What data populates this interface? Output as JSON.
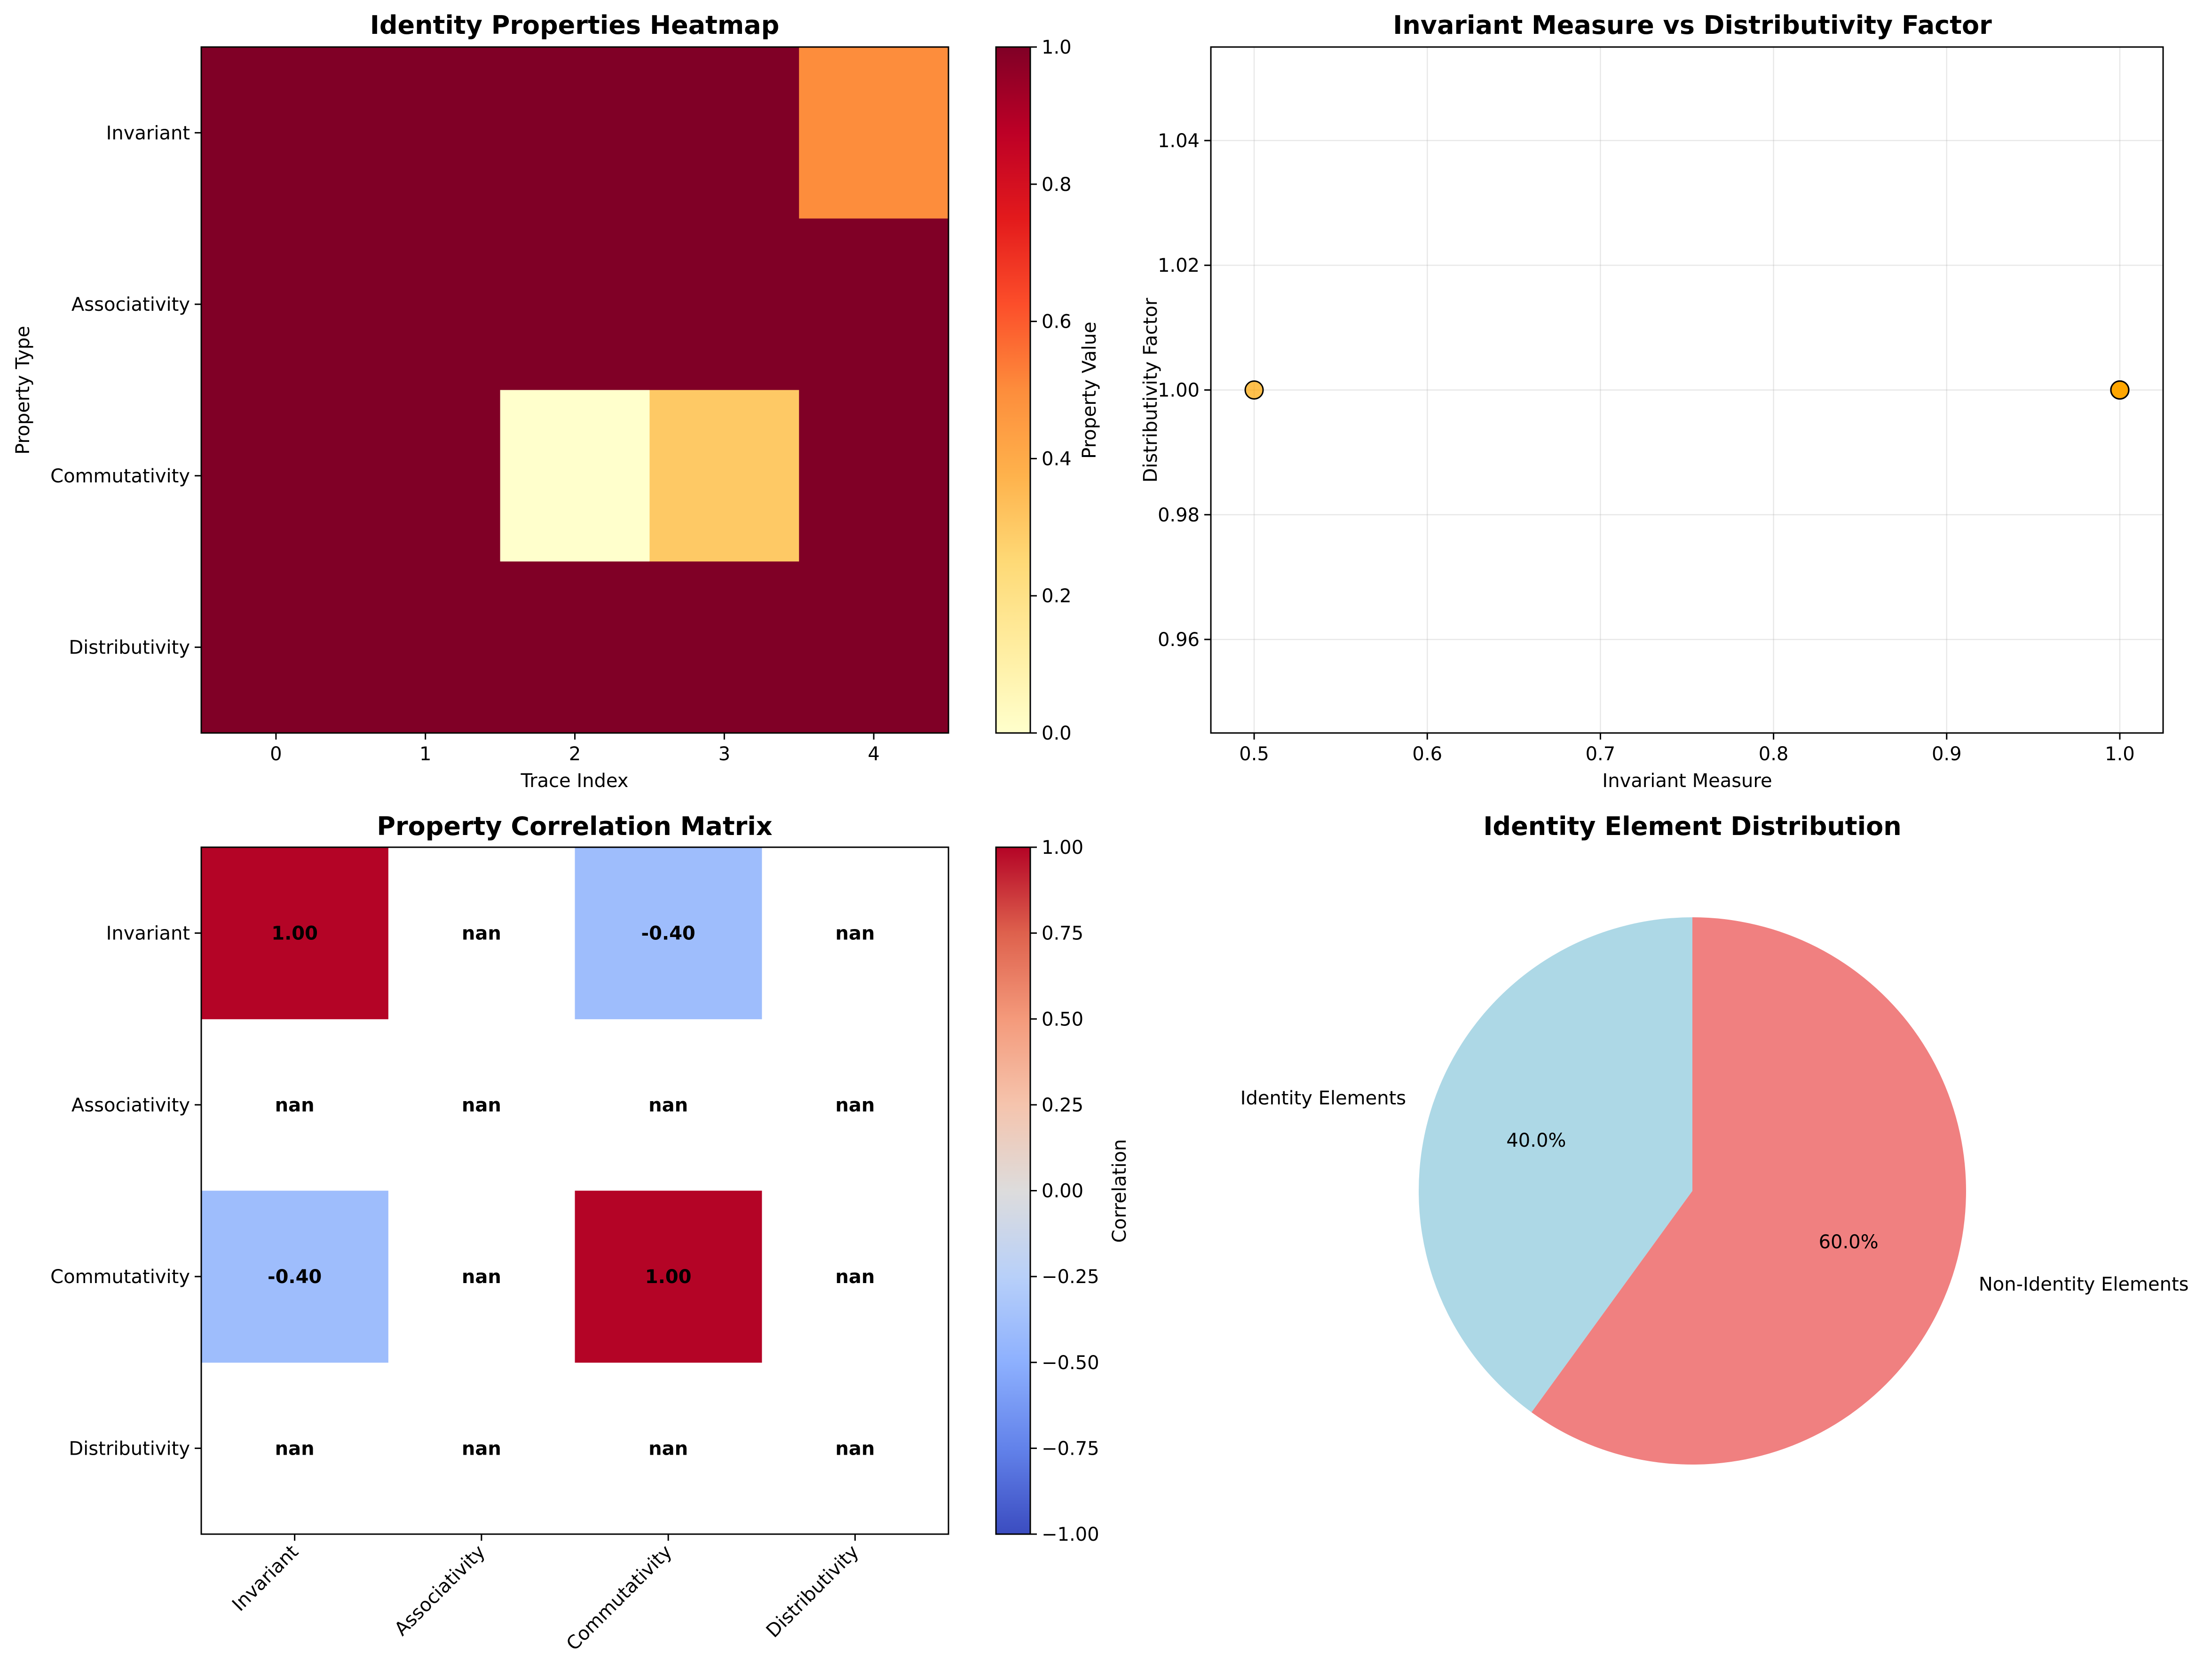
{
  "chart_data": [
    {
      "type": "heatmap",
      "title": "Identity Properties Heatmap",
      "xlabel": "Trace Index",
      "ylabel": "Property Type",
      "x_ticks": [
        "0",
        "1",
        "2",
        "3",
        "4"
      ],
      "y_ticks": [
        "Invariant",
        "Associativity",
        "Commutativity",
        "Distributivity"
      ],
      "values": [
        [
          1,
          1,
          1,
          1,
          0.5
        ],
        [
          1,
          1,
          1,
          1,
          1
        ],
        [
          1,
          1,
          0,
          0.3,
          1
        ],
        [
          1,
          1,
          1,
          1,
          1
        ]
      ],
      "colormap": "YlOrRd",
      "vmin": 0,
      "vmax": 1,
      "colorbar_label": "Property Value",
      "colorbar_ticks": [
        "0.0",
        "0.2",
        "0.4",
        "0.6",
        "0.8",
        "1.0"
      ],
      "colorbar_tick_values": [
        0,
        0.2,
        0.4,
        0.6,
        0.8,
        1.0
      ]
    },
    {
      "type": "scatter",
      "title": "Invariant Measure vs Distributivity Factor",
      "xlabel": "Invariant Measure",
      "ylabel": "Distributivity Factor",
      "x": [
        0.5,
        1.0,
        1.0,
        1.0,
        1.0
      ],
      "y": [
        1.0,
        1.0,
        1.0,
        1.0,
        1.0
      ],
      "xlim": [
        0.475,
        1.025
      ],
      "ylim": [
        0.945,
        1.055
      ],
      "x_ticks": [
        "0.5",
        "0.6",
        "0.7",
        "0.8",
        "0.9",
        "1.0"
      ],
      "x_tick_values": [
        0.5,
        0.6,
        0.7,
        0.8,
        0.9,
        1.0
      ],
      "y_ticks": [
        "0.96",
        "0.98",
        "1.00",
        "1.02",
        "1.04"
      ],
      "y_tick_values": [
        0.96,
        0.98,
        1.0,
        1.02,
        1.04
      ],
      "grid": true,
      "marker_color": "#FFA500"
    },
    {
      "type": "heatmap",
      "title": "Property Correlation Matrix",
      "x_ticks": [
        "Invariant",
        "Associativity",
        "Commutativity",
        "Distributivity"
      ],
      "y_ticks": [
        "Invariant",
        "Associativity",
        "Commutativity",
        "Distributivity"
      ],
      "values": [
        [
          1.0,
          null,
          -0.4,
          null
        ],
        [
          null,
          null,
          null,
          null
        ],
        [
          -0.4,
          null,
          1.0,
          null
        ],
        [
          null,
          null,
          null,
          null
        ]
      ],
      "labels": [
        [
          "1.00",
          "nan",
          "-0.40",
          "nan"
        ],
        [
          "nan",
          "nan",
          "nan",
          "nan"
        ],
        [
          "-0.40",
          "nan",
          "1.00",
          "nan"
        ],
        [
          "nan",
          "nan",
          "nan",
          "nan"
        ]
      ],
      "colormap": "coolwarm",
      "vmin": -1,
      "vmax": 1,
      "colorbar_label": "Correlation",
      "colorbar_ticks": [
        "−1.00",
        "−0.75",
        "−0.50",
        "−0.25",
        "0.00",
        "0.25",
        "0.50",
        "0.75",
        "1.00"
      ],
      "colorbar_tick_values": [
        -1,
        -0.75,
        -0.5,
        -0.25,
        0,
        0.25,
        0.5,
        0.75,
        1.0
      ]
    },
    {
      "type": "pie",
      "title": "Identity Element Distribution",
      "labels": [
        "Identity Elements",
        "Non-Identity Elements"
      ],
      "values": [
        40,
        60
      ],
      "pct_labels": [
        "40.0%",
        "60.0%"
      ],
      "colors": [
        "#ADD8E6",
        "#F08080"
      ],
      "start_angle": 90
    }
  ]
}
